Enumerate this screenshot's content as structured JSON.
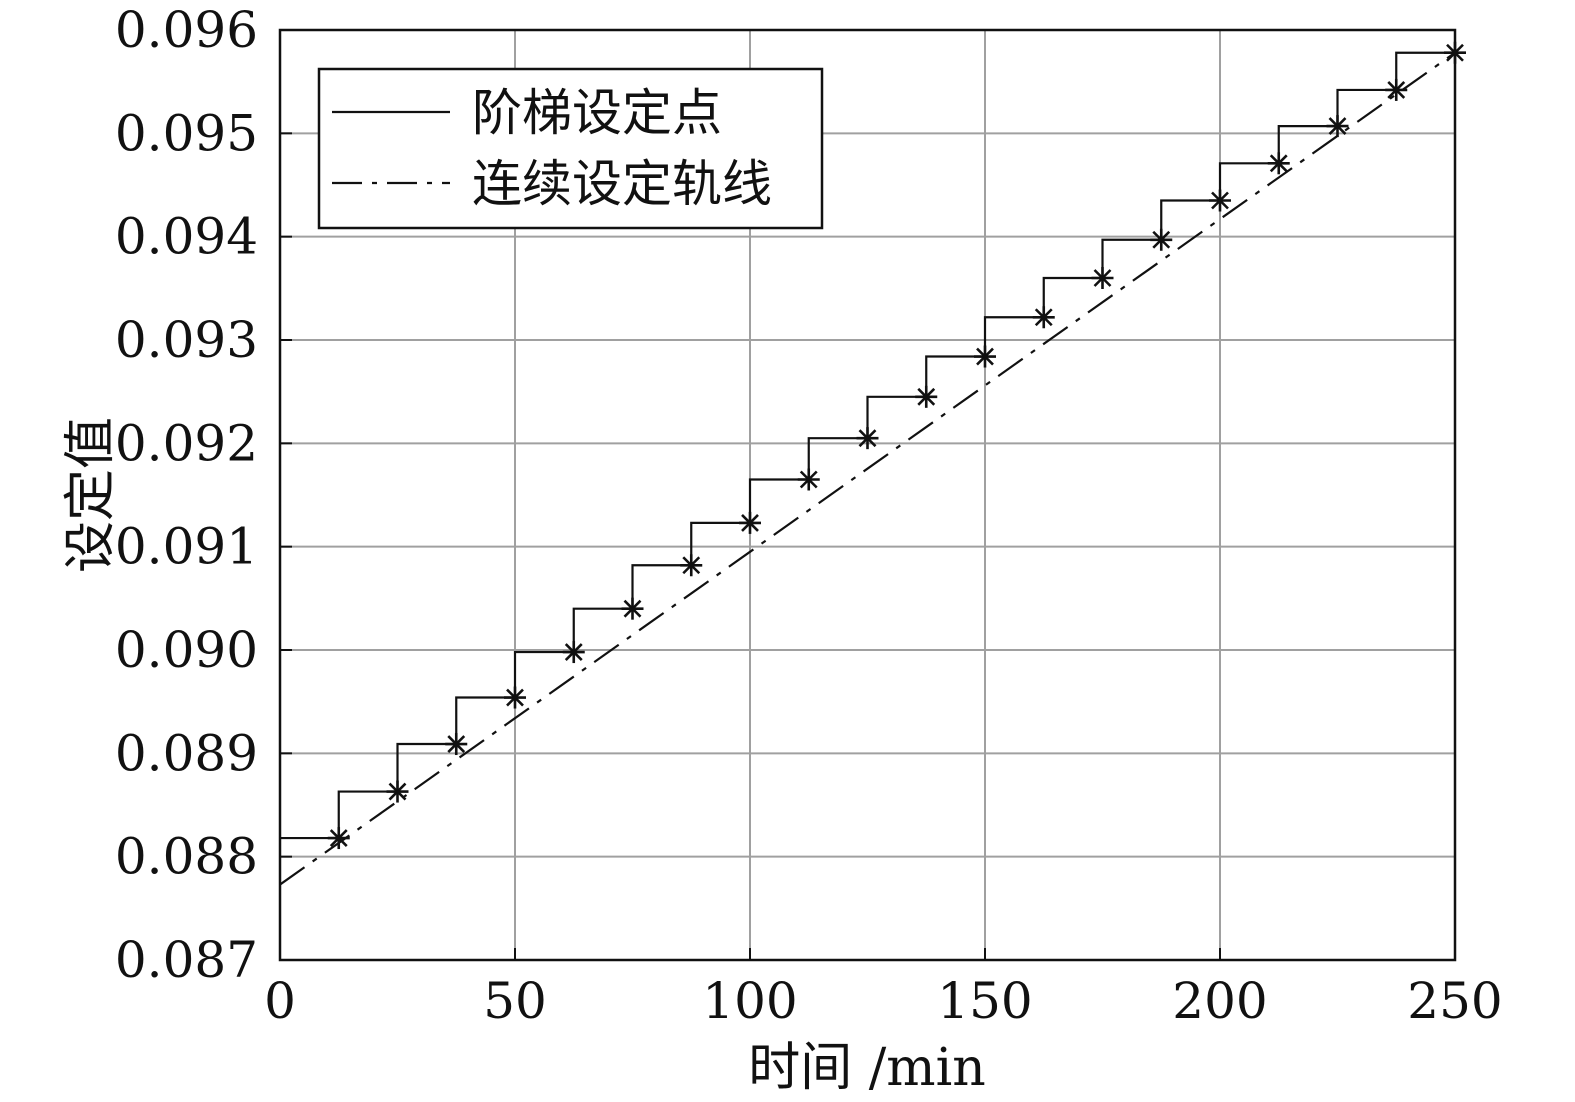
{
  "chart_data": {
    "type": "line",
    "xlabel": "时间 /min",
    "ylabel": "设定值",
    "xlim": [
      0,
      250
    ],
    "ylim": [
      0.087,
      0.096
    ],
    "x_ticks": [
      "0",
      "50",
      "100",
      "150",
      "200",
      "250"
    ],
    "y_ticks": [
      "0.087",
      "0.088",
      "0.089",
      "0.090",
      "0.091",
      "0.092",
      "0.093",
      "0.094",
      "0.095",
      "0.096"
    ],
    "x_tick_values": [
      0,
      50,
      100,
      150,
      200,
      250
    ],
    "y_tick_values": [
      0.087,
      0.088,
      0.089,
      0.09,
      0.091,
      0.092,
      0.093,
      0.094,
      0.095,
      0.096
    ],
    "grid": true,
    "legend_position": "top-left",
    "series": [
      {
        "name": "阶梯设定点",
        "style": "solid-step",
        "color": "#111111",
        "x": [
          0,
          12.5,
          25,
          37.5,
          50,
          62.5,
          75,
          87.5,
          100,
          112.5,
          125,
          137.5,
          150,
          162.5,
          175,
          187.5,
          200,
          212.5,
          225,
          237.5,
          250
        ],
        "y": [
          0.08818,
          0.08863,
          0.08909,
          0.08954,
          0.08998,
          0.0904,
          0.09082,
          0.09123,
          0.09165,
          0.09205,
          0.09245,
          0.09284,
          0.09322,
          0.0936,
          0.09397,
          0.09435,
          0.09471,
          0.09507,
          0.09542,
          0.09578,
          0.09578
        ]
      },
      {
        "name": "连续设定轨线",
        "style": "dash-dot",
        "color": "#111111",
        "x": [
          0,
          250
        ],
        "y": [
          0.08773,
          0.09578
        ]
      },
      {
        "name": "",
        "style": "asterisk-markers",
        "color": "#111111",
        "x": [
          12.5,
          25,
          37.5,
          50,
          62.5,
          75,
          87.5,
          100,
          112.5,
          125,
          137.5,
          150,
          162.5,
          175,
          187.5,
          200,
          212.5,
          225,
          237.5,
          250
        ],
        "y": [
          0.08818,
          0.08863,
          0.08909,
          0.08954,
          0.08998,
          0.0904,
          0.09082,
          0.09123,
          0.09165,
          0.09205,
          0.09245,
          0.09284,
          0.09322,
          0.0936,
          0.09397,
          0.09435,
          0.09471,
          0.09507,
          0.09542,
          0.09578
        ]
      }
    ]
  }
}
